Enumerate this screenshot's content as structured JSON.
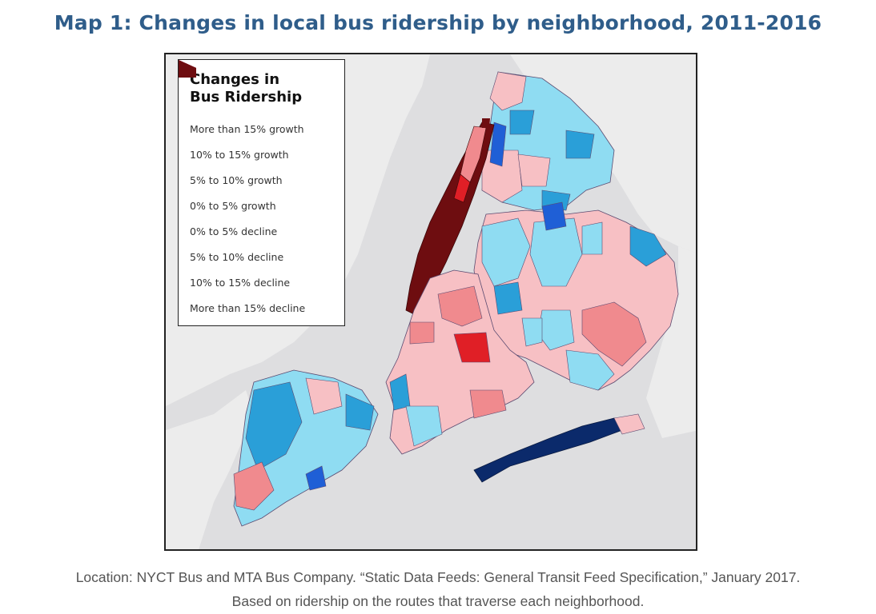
{
  "title": "Map 1: Changes in local bus ridership by neighborhood, 2011-2016",
  "legend": {
    "title_line1": "Changes in",
    "title_line2": "Bus Ridership",
    "items": [
      {
        "label": "More than 15% growth",
        "color": "#0b2a6b"
      },
      {
        "label": "10% to 15% growth",
        "color": "#1f5fd6"
      },
      {
        "label": "5% to 10% growth",
        "color": "#2a9fd8"
      },
      {
        "label": "0% to 5% growth",
        "color": "#8fdcf2"
      },
      {
        "label": "0% to 5% decline",
        "color": "#f7c0c4"
      },
      {
        "label": "5% to 10% decline",
        "color": "#f08a8e"
      },
      {
        "label": "10% to 15% decline",
        "color": "#e01f26"
      },
      {
        "label": "More than 15% decline",
        "color": "#6e0d10"
      }
    ]
  },
  "caption": {
    "line1": "Location: NYCT Bus and MTA Bus Company. “Static Data Feeds: General Transit Feed Specification,” January 2017.",
    "line2": "Based on ridership on the routes that traverse each neighborhood."
  },
  "colors": {
    "water": "#dedee0",
    "land_other": "#ececec"
  }
}
